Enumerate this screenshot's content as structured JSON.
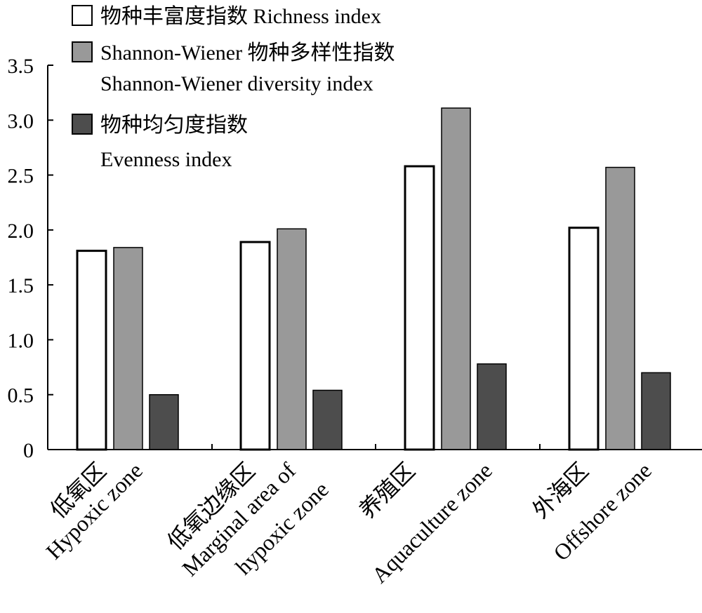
{
  "chart_data": {
    "type": "bar",
    "categories": [
      {
        "lines": [
          "低氧区",
          "Hypoxic zone"
        ]
      },
      {
        "lines": [
          "低氧边缘区",
          "Marginal area of",
          "hypoxic zone"
        ]
      },
      {
        "lines": [
          "养殖区",
          "Aquaculture zone"
        ]
      },
      {
        "lines": [
          "外海区",
          "Offshore zone"
        ]
      }
    ],
    "series": [
      {
        "name_lines": [
          "物种丰富度指数 Richness index"
        ],
        "color": "#ffffff",
        "values": [
          1.81,
          1.89,
          2.58,
          2.02
        ]
      },
      {
        "name_lines": [
          "Shannon-Wiener 物种多样性指数",
          "Shannon-Wiener diversity index"
        ],
        "color": "#999999",
        "values": [
          1.84,
          2.01,
          3.11,
          2.57
        ]
      },
      {
        "name_lines": [
          "物种均匀度指数",
          "Evenness index"
        ],
        "color": "#4d4d4d",
        "values": [
          0.5,
          0.54,
          0.78,
          0.7
        ]
      }
    ],
    "yticks": [
      "0",
      "0.5",
      "1.0",
      "1.5",
      "2.0",
      "2.5",
      "3.0",
      "3.5"
    ],
    "ylim": [
      0,
      3.5
    ],
    "xlabel": "",
    "ylabel": "",
    "grid": false,
    "legend_position": "top-left"
  }
}
